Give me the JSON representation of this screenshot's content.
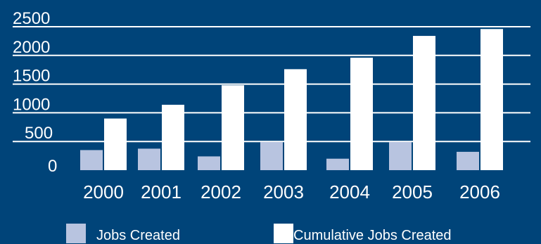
{
  "colors": {
    "background": "#004479",
    "gridline": "#FFFFFF",
    "text": "#FFFFFF",
    "series_jobs": "#B8C4E0",
    "series_cumulative": "#FFFFFF"
  },
  "chart_data": {
    "type": "bar",
    "title": "",
    "xlabel": "",
    "ylabel": "",
    "categories": [
      "2000",
      "2001",
      "2002",
      "2003",
      "2004",
      "2005",
      "2006"
    ],
    "y_ticks": [
      "0",
      "500",
      "1000",
      "1500",
      "2000",
      "2500"
    ],
    "ylim": [
      0,
      2500
    ],
    "grid": true,
    "legend_position": "bottom",
    "series": [
      {
        "name": "Jobs Created",
        "values": [
          350,
          375,
          240,
          490,
          200,
          490,
          320
        ]
      },
      {
        "name": "Cumulative Jobs Created",
        "values": [
          900,
          1140,
          1480,
          1760,
          1960,
          2340,
          2460
        ]
      }
    ]
  }
}
